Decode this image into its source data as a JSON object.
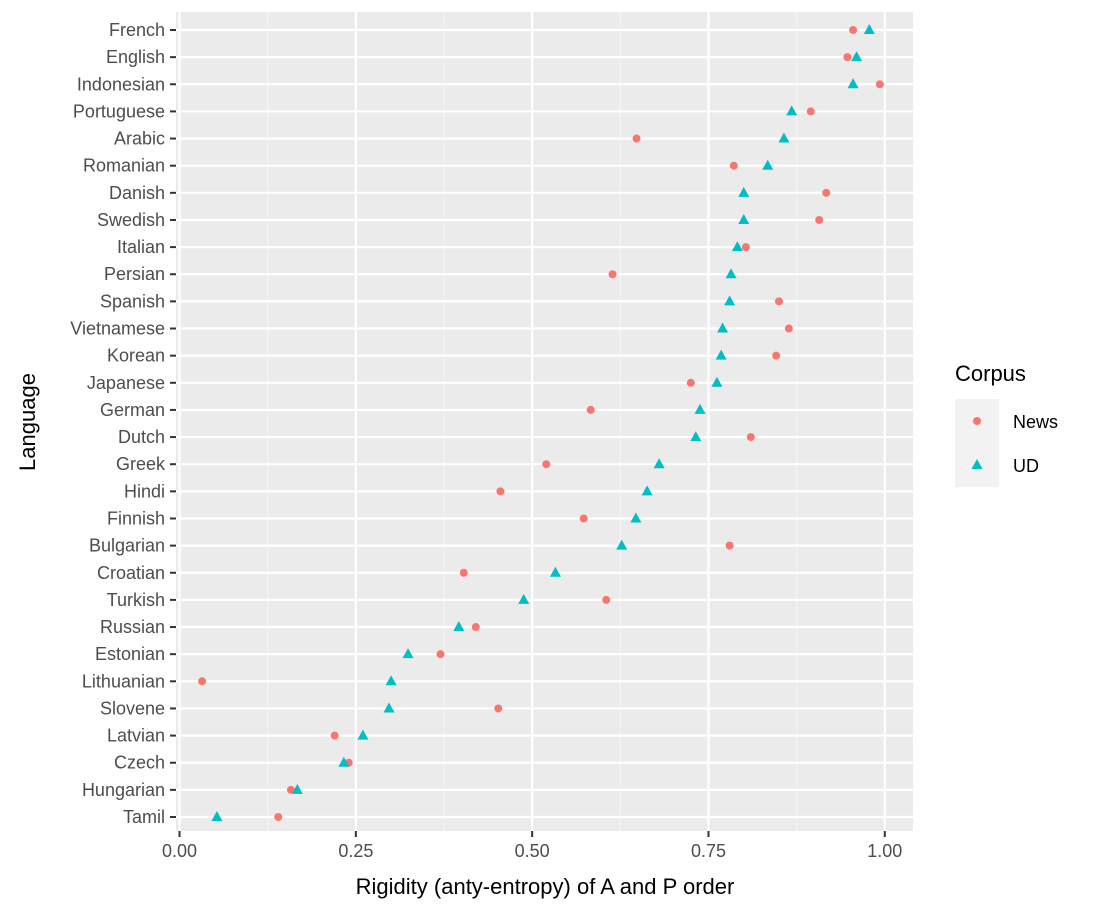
{
  "chart_data": {
    "type": "scatter",
    "title": "",
    "xlabel": "Rigidity (anty-entropy) of A and P order",
    "ylabel": "Language",
    "xlim": [
      -0.005,
      1.04
    ],
    "x_ticks": [
      0.0,
      0.25,
      0.5,
      0.75,
      1.0
    ],
    "x_tick_labels": [
      "0.00",
      "0.25",
      "0.50",
      "0.75",
      "1.00"
    ],
    "grid": true,
    "categories": [
      "French",
      "English",
      "Indonesian",
      "Portuguese",
      "Arabic",
      "Romanian",
      "Danish",
      "Swedish",
      "Italian",
      "Persian",
      "Spanish",
      "Vietnamese",
      "Korean",
      "Japanese",
      "German",
      "Dutch",
      "Greek",
      "Hindi",
      "Finnish",
      "Bulgarian",
      "Croatian",
      "Turkish",
      "Russian",
      "Estonian",
      "Lithuanian",
      "Slovene",
      "Latvian",
      "Czech",
      "Hungarian",
      "Tamil"
    ],
    "series": [
      {
        "name": "News",
        "shape": "circle",
        "color": "#F8766D",
        "values": [
          0.955,
          0.947,
          0.993,
          0.895,
          0.648,
          0.786,
          0.917,
          0.907,
          0.803,
          0.614,
          0.85,
          0.864,
          0.846,
          0.725,
          0.583,
          0.81,
          0.52,
          0.455,
          0.573,
          0.78,
          0.403,
          0.605,
          0.42,
          0.37,
          0.032,
          0.452,
          0.22,
          0.24,
          0.158,
          0.14
        ]
      },
      {
        "name": "UD",
        "shape": "triangle",
        "color": "#00BFC4",
        "values": [
          0.978,
          0.96,
          0.955,
          0.868,
          0.857,
          0.834,
          0.8,
          0.8,
          0.791,
          0.782,
          0.78,
          0.77,
          0.768,
          0.762,
          0.738,
          0.732,
          0.68,
          0.663,
          0.647,
          0.627,
          0.533,
          0.488,
          0.396,
          0.324,
          0.3,
          0.297,
          0.26,
          0.233,
          0.167,
          0.053
        ]
      }
    ],
    "legend": {
      "title": "Corpus",
      "position": "right",
      "entries": [
        "News",
        "UD"
      ]
    }
  }
}
